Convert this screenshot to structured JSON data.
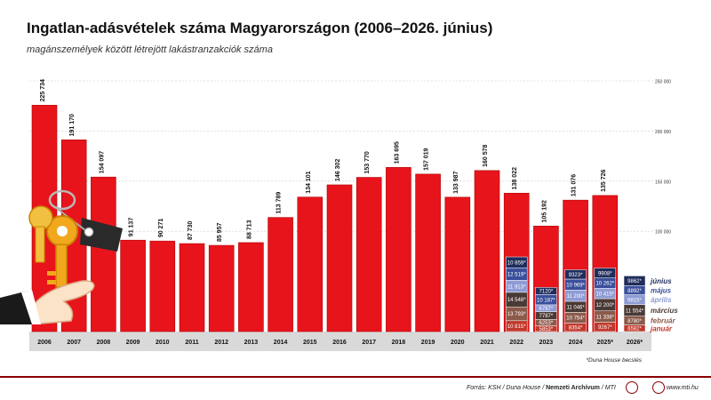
{
  "header": {
    "title": "Ingatlan-adásvételek száma Magyarországon (2006–2026. június)",
    "subtitle": "magánszemélyek között létrejött lakástranzakciók száma"
  },
  "footer": {
    "source_prefix": "Forrás: KSH / Duna House / ",
    "source_bold": "Nemzeti Archívum",
    "source_suffix": " / MTI",
    "web": "www.mti.hu"
  },
  "note": "*Duna House becslés",
  "colors": {
    "bar": "#e8141b",
    "bar_edge": "#b00000",
    "band": "#d9d9d9",
    "months": {
      "junius": "#1f2d5c",
      "majus": "#3a4f9c",
      "aprilis": "#8e9bd4",
      "marcius": "#4a3a36",
      "februar": "#8a5a4a",
      "januar": "#c0392b"
    }
  },
  "chart_data": {
    "type": "bar",
    "title": "Ingatlan-adásvételek száma Magyarországon (2006–2026. június)",
    "ylim": [
      0,
      250000
    ],
    "y_ticks": [
      "250 000",
      "200 000",
      "150 000",
      "100 000"
    ],
    "y_tick_values": [
      250000,
      200000,
      150000,
      100000
    ],
    "grid": true,
    "categories": [
      "2006",
      "2007",
      "2008",
      "2009",
      "2010",
      "2011",
      "2012",
      "2013",
      "2014",
      "2015",
      "2016",
      "2017",
      "2018",
      "2019",
      "2020",
      "2021",
      "2022",
      "2023",
      "2024",
      "2025*",
      "2026*"
    ],
    "annual": [
      {
        "year": "2006",
        "value": 225734,
        "label": "225 734"
      },
      {
        "year": "2007",
        "value": 191170,
        "label": "191 170"
      },
      {
        "year": "2008",
        "value": 154097,
        "label": "154 097"
      },
      {
        "year": "2009",
        "value": 91137,
        "label": "91 137"
      },
      {
        "year": "2010",
        "value": 90271,
        "label": "90 271"
      },
      {
        "year": "2011",
        "value": 87730,
        "label": "87 730"
      },
      {
        "year": "2012",
        "value": 85957,
        "label": "85 957"
      },
      {
        "year": "2013",
        "value": 88713,
        "label": "88 713"
      },
      {
        "year": "2014",
        "value": 113789,
        "label": "113 789"
      },
      {
        "year": "2015",
        "value": 134101,
        "label": "134 101"
      },
      {
        "year": "2016",
        "value": 146302,
        "label": "146 302"
      },
      {
        "year": "2017",
        "value": 153770,
        "label": "153 770"
      },
      {
        "year": "2018",
        "value": 163695,
        "label": "163 695"
      },
      {
        "year": "2019",
        "value": 157019,
        "label": "157 019"
      },
      {
        "year": "2020",
        "value": 133987,
        "label": "133 987"
      },
      {
        "year": "2021",
        "value": 160578,
        "label": "160 578"
      },
      {
        "year": "2022",
        "value": 138022,
        "label": "138 022"
      },
      {
        "year": "2023",
        "value": 105192,
        "label": "105 192"
      },
      {
        "year": "2024",
        "value": 131076,
        "label": "131 076"
      },
      {
        "year": "2025*",
        "value": 135726,
        "label": "135 726"
      },
      {
        "year": "2026*",
        "value": null,
        "label": ""
      }
    ],
    "monthly_series": [
      {
        "name": "január",
        "key": "januar"
      },
      {
        "name": "február",
        "key": "februar"
      },
      {
        "name": "március",
        "key": "marcius"
      },
      {
        "name": "április",
        "key": "aprilis"
      },
      {
        "name": "május",
        "key": "majus"
      },
      {
        "name": "június",
        "key": "junius"
      }
    ],
    "monthly": [
      {
        "year": "2022",
        "values": [
          10815,
          13793,
          14548,
          11913,
          12519,
          10859
        ],
        "labels": [
          "10 815*",
          "13 793*",
          "14 548*",
          "11 913*",
          "12 519*",
          "10 859*"
        ]
      },
      {
        "year": "2023",
        "values": [
          5853,
          6253,
          7787,
          6787,
          10187,
          7120
        ],
        "labels": [
          "5853*",
          "6253*",
          "7787*",
          "6787*",
          "10 187*",
          "7120*"
        ]
      },
      {
        "year": "2024",
        "values": [
          8354,
          10754,
          11046,
          11200,
          10969,
          9323
        ],
        "labels": [
          "8354*",
          "10 754*",
          "11 046*",
          "11 200*",
          "10 969*",
          "9323*"
        ]
      },
      {
        "year": "2025*",
        "values": [
          9267,
          11338,
          12200,
          10415,
          10262,
          9908
        ],
        "labels": [
          "9267*",
          "11 338*",
          "12 200*",
          "10 415*",
          "10 262*",
          "9908*"
        ]
      },
      {
        "year": "2026*",
        "values": [
          6582,
          8780,
          11554,
          9815,
          8892,
          9862
        ],
        "labels": [
          "6582*",
          "8780*",
          "11 554*",
          "9815*",
          "8892*",
          "9862*"
        ]
      }
    ],
    "month_legend": [
      "június",
      "május",
      "április",
      "március",
      "február",
      "január"
    ]
  }
}
